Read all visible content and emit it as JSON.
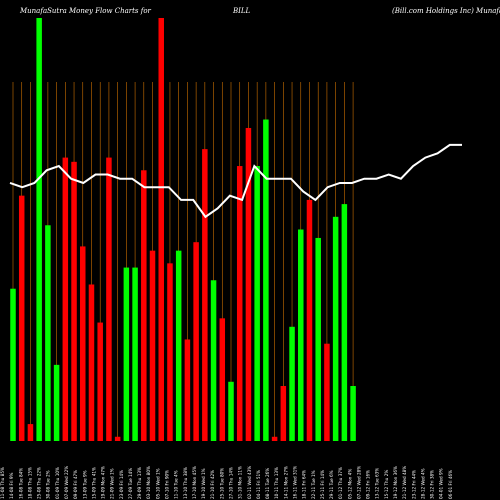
{
  "header": {
    "title": "MunafaSutra  Money Flow  Charts for",
    "ticker": "BILL",
    "company": "(Bill.com Holdings Inc) MunafaSutra.com"
  },
  "colors": {
    "background": "#000000",
    "up_bar": "#00ff00",
    "down_bar": "#ff0000",
    "line": "#ffffff",
    "grid": "#ff8c00",
    "text": "#ffffff"
  },
  "chart_data": {
    "type": "bar",
    "grid": true,
    "ylim": [
      0,
      100
    ],
    "x_labels": [
      "11-08 Thu 85%",
      "14-08 Fri 9%",
      "16-08 Tue 84%",
      "18-08 Thu 15%",
      "25-08 Thu 22%",
      "30-08 Tue 2%",
      "01-09 Thu 10%",
      "07-09 Wed 22%",
      "09-09 Fri 47%",
      "13-09 Tue 9%",
      "15-09 Thu 41%",
      "19-09 Mon 47%",
      "21-09 Wed 1%",
      "23-09 Fri 14%",
      "27-09 Tue 14%",
      "29-09 Thu 13%",
      "03-10 Mon 80%",
      "05-10 Wed 1%",
      "07-10 Fri 90%",
      "11-10 Tue 4%",
      "13-10 Thu 38%",
      "17-10 Mon 45%",
      "19-10 Wed 1%",
      "21-10 Fri 42%",
      "25-10 Tue 80%",
      "27-10 Thu 14%",
      "31-10 Mon 11%",
      "02-11 Wed 43%",
      "04-11 Fri 51%",
      "08-11 Tue 26%",
      "10-11 Thu 13%",
      "14-11 Mon 27%",
      "16-11 Wed 31%",
      "18-11 Fri 64%",
      "22-11 Tue 1%",
      "25-11 Fri 14%",
      "29-11 Tue 6%",
      "01-12 Thu 37%",
      "05-12 Mon 4%",
      "07-12 Wed 28%",
      "09-12 Fri 16%",
      "13-12 Tue 63%",
      "15-12 Thu 2%",
      "19-12 Mon 36%",
      "21-12 Wed 48%",
      "23-12 Fri 44%",
      "28-12 Wed 4%",
      "30-12 Fri 38%",
      "04-01 Wed 9%",
      "06-01 Fri 46%"
    ],
    "x_labels_note_visible_only": true,
    "bars": [
      {
        "dir": "up",
        "value": 36
      },
      {
        "dir": "down",
        "value": 58
      },
      {
        "dir": "down",
        "value": 4
      },
      {
        "dir": "up",
        "value": 100
      },
      {
        "dir": "up",
        "value": 51
      },
      {
        "dir": "up",
        "value": 18
      },
      {
        "dir": "down",
        "value": 67
      },
      {
        "dir": "down",
        "value": 66
      },
      {
        "dir": "down",
        "value": 46
      },
      {
        "dir": "down",
        "value": 37
      },
      {
        "dir": "down",
        "value": 28
      },
      {
        "dir": "down",
        "value": 67
      },
      {
        "dir": "down",
        "value": 1
      },
      {
        "dir": "up",
        "value": 41
      },
      {
        "dir": "up",
        "value": 41
      },
      {
        "dir": "down",
        "value": 64
      },
      {
        "dir": "down",
        "value": 45
      },
      {
        "dir": "down",
        "value": 100
      },
      {
        "dir": "down",
        "value": 42
      },
      {
        "dir": "up",
        "value": 45
      },
      {
        "dir": "down",
        "value": 24
      },
      {
        "dir": "down",
        "value": 47
      },
      {
        "dir": "down",
        "value": 69
      },
      {
        "dir": "up",
        "value": 38
      },
      {
        "dir": "down",
        "value": 29
      },
      {
        "dir": "up",
        "value": 14
      },
      {
        "dir": "down",
        "value": 65
      },
      {
        "dir": "down",
        "value": 74
      },
      {
        "dir": "up",
        "value": 65
      },
      {
        "dir": "up",
        "value": 76
      },
      {
        "dir": "down",
        "value": 1
      },
      {
        "dir": "down",
        "value": 13
      },
      {
        "dir": "up",
        "value": 27
      },
      {
        "dir": "up",
        "value": 50
      },
      {
        "dir": "down",
        "value": 57
      },
      {
        "dir": "up",
        "value": 48
      },
      {
        "dir": "down",
        "value": 23
      },
      {
        "dir": "up",
        "value": 53
      },
      {
        "dir": "up",
        "value": 56
      },
      {
        "dir": "up",
        "value": 13
      }
    ],
    "line": [
      61,
      60,
      61,
      64,
      65,
      62,
      61,
      63,
      63,
      62,
      62,
      60,
      60,
      60,
      57,
      57,
      53,
      55,
      58,
      57,
      65,
      62,
      62,
      62,
      59,
      57,
      60,
      61,
      61,
      62,
      62,
      63,
      62,
      65,
      67,
      68,
      70,
      70
    ]
  }
}
